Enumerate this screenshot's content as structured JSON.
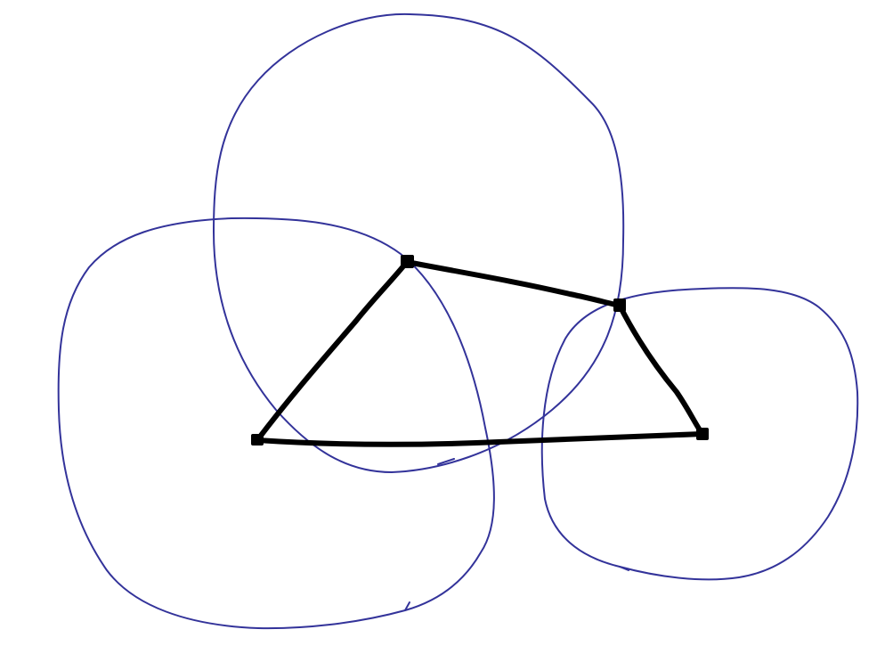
{
  "diagram": {
    "background_color": "#ffffff",
    "circle_stroke_color": "#33339a",
    "triangle_stroke_color": "#000000",
    "vertex_fill_color": "#000000",
    "circles": [
      {
        "name": "top-circle"
      },
      {
        "name": "left-circle"
      },
      {
        "name": "right-circle"
      }
    ],
    "triangle": {
      "vertices": [
        {
          "name": "vertex-left"
        },
        {
          "name": "vertex-top"
        },
        {
          "name": "vertex-right-top"
        },
        {
          "name": "vertex-right-bottom"
        }
      ]
    }
  }
}
